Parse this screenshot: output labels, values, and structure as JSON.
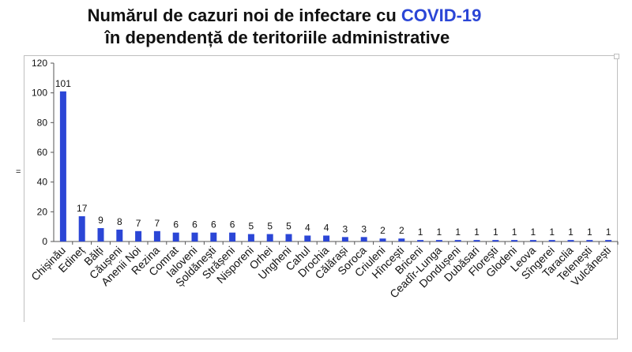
{
  "title": {
    "line1_main": "Numărul de cazuri noi de infectare cu ",
    "line1_accent": "COVID-19",
    "line2": "în dependență de teritoriile administrative"
  },
  "yaxis_marker": "=",
  "colors": {
    "bar": "#2b46d6",
    "accent": "#2b46d6",
    "axis": "#555555"
  },
  "chart_data": {
    "type": "bar",
    "title": "Numărul de cazuri noi de infectare cu COVID-19 în dependență de teritoriile administrative",
    "xlabel": "",
    "ylabel": "",
    "ylim": [
      0,
      120
    ],
    "yticks": [
      0,
      20,
      40,
      60,
      80,
      100,
      120
    ],
    "grid": false,
    "categories": [
      "Chișinău",
      "Edineț",
      "Bălți",
      "Căușeni",
      "Anenii Noi",
      "Rezina",
      "Comrat",
      "Ialoveni",
      "Șoldănești",
      "Strășeni",
      "Nisporeni",
      "Orhei",
      "Ungheni",
      "Cahul",
      "Drochia",
      "Călărași",
      "Soroca",
      "Criuleni",
      "Hîncești",
      "Briceni",
      "Ceadîr-Lunga",
      "Dondușeni",
      "Dubăsari",
      "Florești",
      "Glodeni",
      "Leova",
      "Sîngerei",
      "Taraclia",
      "Telenești",
      "Vulcănești"
    ],
    "values": [
      101,
      17,
      9,
      8,
      7,
      7,
      6,
      6,
      6,
      6,
      5,
      5,
      5,
      4,
      4,
      3,
      3,
      2,
      2,
      1,
      1,
      1,
      1,
      1,
      1,
      1,
      1,
      1,
      1,
      1
    ]
  }
}
